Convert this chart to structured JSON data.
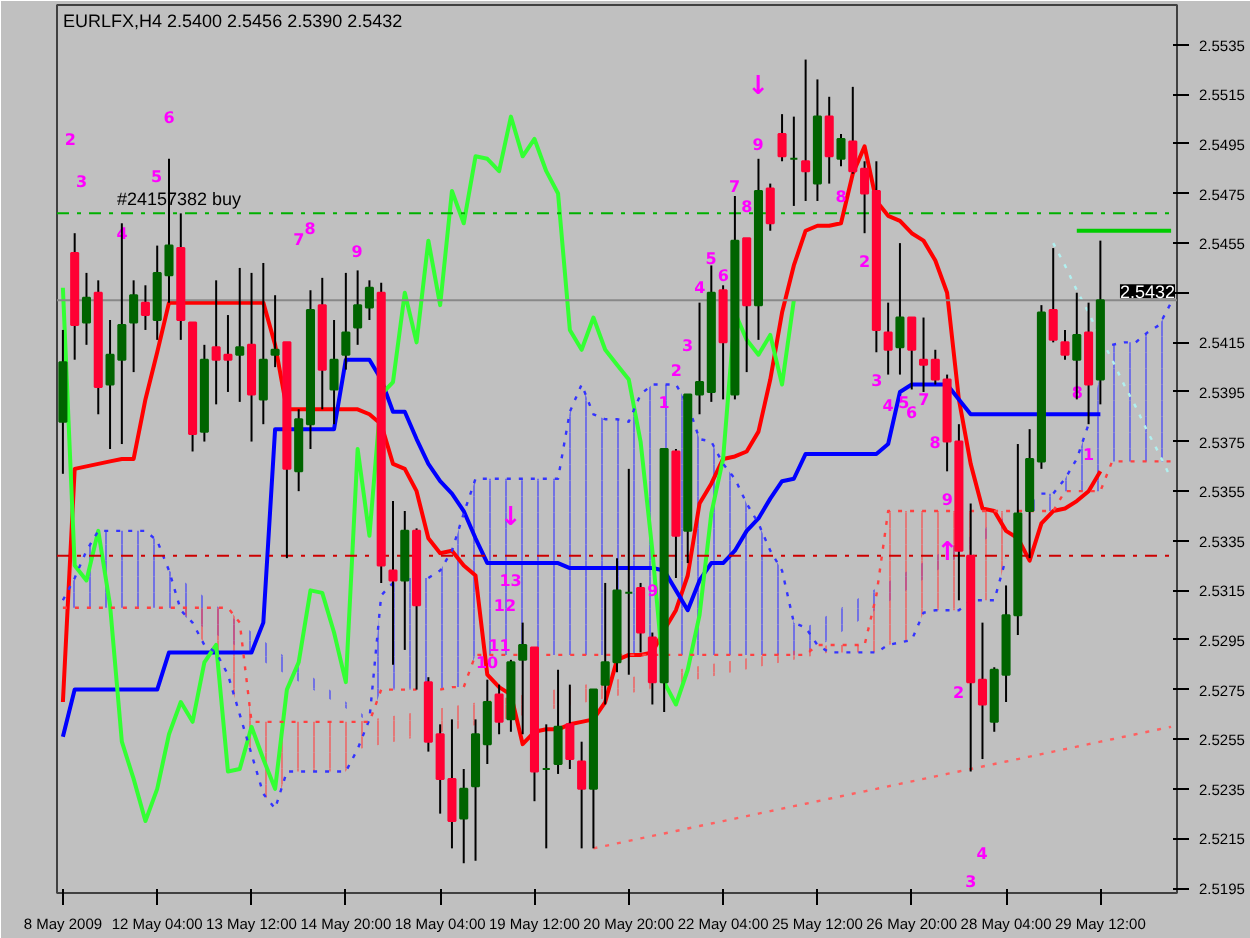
{
  "chart_data": {
    "type": "candlestick",
    "title": "EURLFX,H4  2.5400 2.5456 2.5390 2.5432",
    "categories": [
      "8 May 2009",
      null,
      null,
      null,
      null,
      null,
      null,
      null,
      "12 May 04:00",
      null,
      null,
      null,
      null,
      null,
      null,
      null,
      "13 May 12:00",
      null,
      null,
      null,
      null,
      null,
      null,
      null,
      "14 May 20:00",
      null,
      null,
      null,
      null,
      null,
      null,
      null,
      "18 May 04:00",
      null,
      null,
      null,
      null,
      null,
      null,
      null,
      "19 May 12:00",
      null,
      null,
      null,
      null,
      null,
      null,
      null,
      "20 May 20:00",
      null,
      null,
      null,
      null,
      null,
      null,
      null,
      "22 May 04:00",
      null,
      null,
      null,
      null,
      null,
      null,
      null,
      "25 May 12:00",
      null,
      null,
      null,
      null,
      null,
      null,
      null,
      "26 May 20:00",
      null,
      null,
      null,
      null,
      null,
      null,
      null,
      "28 May 04:00",
      null,
      null,
      null,
      null,
      null,
      null,
      null,
      "29 May 12:00",
      null,
      null,
      null,
      null,
      null,
      null
    ],
    "ohlc": [
      [
        2.5383,
        2.542,
        2.5362,
        2.5407
      ],
      [
        2.5451,
        2.5459,
        2.5408,
        2.5422
      ],
      [
        2.5423,
        2.5443,
        2.5414,
        2.5433
      ],
      [
        2.5435,
        2.544,
        2.5386,
        2.5397
      ],
      [
        2.5398,
        2.5424,
        2.5372,
        2.541
      ],
      [
        2.5408,
        2.5463,
        2.5374,
        2.5422
      ],
      [
        2.5423,
        2.544,
        2.5403,
        2.5434
      ],
      [
        2.5431,
        2.5438,
        2.542,
        2.5426
      ],
      [
        2.5424,
        2.5454,
        2.5416,
        2.5443
      ],
      [
        2.5442,
        2.5489,
        2.5431,
        2.5454
      ],
      [
        2.5453,
        2.5467,
        2.5416,
        2.5424
      ],
      [
        2.5423,
        2.5423,
        2.5371,
        2.5378
      ],
      [
        2.5379,
        2.5414,
        2.5375,
        2.5408
      ],
      [
        2.5413,
        2.544,
        2.539,
        2.5408
      ],
      [
        2.541,
        2.5426,
        2.5395,
        2.5408
      ],
      [
        2.541,
        2.5445,
        2.5391,
        2.5413
      ],
      [
        2.5414,
        2.5443,
        2.5375,
        2.5394
      ],
      [
        2.5392,
        2.5447,
        2.5382,
        2.5408
      ],
      [
        2.541,
        2.5434,
        2.5405,
        2.5412
      ],
      [
        2.5415,
        2.5415,
        2.5328,
        2.5364
      ],
      [
        2.5363,
        2.5388,
        2.5355,
        2.5384
      ],
      [
        2.5382,
        2.5436,
        2.5372,
        2.5428
      ],
      [
        2.543,
        2.5441,
        2.5388,
        2.5404
      ],
      [
        2.5396,
        2.5424,
        2.5382,
        2.5408
      ],
      [
        2.541,
        2.5443,
        2.5404,
        2.5419
      ],
      [
        2.5421,
        2.5444,
        2.5414,
        2.543
      ],
      [
        2.5429,
        2.544,
        2.5424,
        2.5437
      ],
      [
        2.5435,
        2.5439,
        2.5318,
        2.5325
      ],
      [
        2.5323,
        2.5351,
        2.5285,
        2.5319
      ],
      [
        2.5319,
        2.5347,
        2.5291,
        2.5339
      ],
      [
        2.5339,
        2.534,
        2.5275,
        2.5309
      ],
      [
        2.5278,
        2.528,
        2.525,
        2.5254
      ],
      [
        2.5257,
        2.5261,
        2.5225,
        2.5239
      ],
      [
        2.5239,
        2.5263,
        2.5211,
        2.5222
      ],
      [
        2.5223,
        2.5243,
        2.5205,
        2.5235
      ],
      [
        2.5236,
        2.5263,
        2.5206,
        2.5257
      ],
      [
        2.5253,
        2.5279,
        2.5245,
        2.527
      ],
      [
        2.5273,
        2.5277,
        2.5257,
        2.5262
      ],
      [
        2.5263,
        2.5287,
        2.5258,
        2.5286
      ],
      [
        2.5287,
        2.5302,
        2.5257,
        2.5293
      ],
      [
        2.5292,
        2.5292,
        2.523,
        2.5242
      ],
      [
        2.5243,
        2.5261,
        2.5211,
        2.5243
      ],
      [
        2.5245,
        2.5283,
        2.5241,
        2.526
      ],
      [
        2.5261,
        2.5277,
        2.5243,
        2.5247
      ],
      [
        2.5246,
        2.5254,
        2.5211,
        2.5235
      ],
      [
        2.5235,
        2.5275,
        2.5211,
        2.5275
      ],
      [
        2.5277,
        2.5318,
        2.5269,
        2.5286
      ],
      [
        2.5286,
        2.5328,
        2.5282,
        2.5315
      ],
      [
        2.5314,
        2.5364,
        2.5281,
        2.5314
      ],
      [
        2.5316,
        2.5318,
        2.529,
        2.5298
      ],
      [
        2.5296,
        2.5298,
        2.5269,
        2.5278
      ],
      [
        2.5278,
        2.5372,
        2.5266,
        2.5372
      ],
      [
        2.5371,
        2.5372,
        2.532,
        2.5337
      ],
      [
        2.5339,
        2.5394,
        2.5326,
        2.5394
      ],
      [
        2.5394,
        2.5431,
        2.5386,
        2.5399
      ],
      [
        2.5395,
        2.5446,
        2.5391,
        2.5435
      ],
      [
        2.5436,
        2.5438,
        2.5392,
        2.5415
      ],
      [
        2.5394,
        2.5474,
        2.5392,
        2.5456
      ],
      [
        2.5457,
        2.5457,
        2.5403,
        2.543
      ],
      [
        2.543,
        2.5489,
        2.5416,
        2.5476
      ],
      [
        2.5477,
        2.5479,
        2.546,
        2.5463
      ],
      [
        2.5499,
        2.5507,
        2.5488,
        2.549
      ],
      [
        2.5489,
        2.5506,
        2.547,
        2.5489
      ],
      [
        2.5488,
        2.5529,
        2.5472,
        2.5484
      ],
      [
        2.5479,
        2.5521,
        2.5472,
        2.5506
      ],
      [
        2.5506,
        2.5514,
        2.5479,
        2.549
      ],
      [
        2.5489,
        2.5499,
        2.5486,
        2.5497
      ],
      [
        2.5496,
        2.5518,
        2.5483,
        2.5484
      ],
      [
        2.5485,
        2.5488,
        2.5459,
        2.5475
      ],
      [
        2.5476,
        2.5488,
        2.5411,
        2.542
      ],
      [
        2.5419,
        2.5431,
        2.5402,
        2.5412
      ],
      [
        2.5413,
        2.5455,
        2.5402,
        2.5425
      ],
      [
        2.5425,
        2.5425,
        2.5396,
        2.5412
      ],
      [
        2.5408,
        2.5425,
        2.5395,
        2.5406
      ],
      [
        2.5408,
        2.5412,
        2.5398,
        2.54
      ],
      [
        2.54,
        2.5402,
        2.5363,
        2.5375
      ],
      [
        2.5375,
        2.5382,
        2.5311,
        2.5331
      ],
      [
        2.5329,
        2.535,
        2.5242,
        2.5278
      ],
      [
        2.5279,
        2.5302,
        2.5247,
        2.5269
      ],
      [
        2.5262,
        2.5284,
        2.5258,
        2.5283
      ],
      [
        2.5281,
        2.5317,
        2.527,
        2.5305
      ],
      [
        2.5305,
        2.5374,
        2.5297,
        2.5346
      ],
      [
        2.5347,
        2.538,
        2.5328,
        2.5368
      ],
      [
        2.5367,
        2.543,
        2.5364,
        2.5427
      ],
      [
        2.5428,
        2.5453,
        2.5415,
        2.5416
      ],
      [
        2.5415,
        2.542,
        2.5408,
        2.541
      ],
      [
        2.5408,
        2.5435,
        2.5392,
        2.5418
      ],
      [
        2.5419,
        2.5431,
        2.5382,
        2.5398
      ],
      [
        2.54,
        2.5456,
        2.539,
        2.5432
      ],
      null,
      null,
      null,
      null,
      null,
      null
    ],
    "colors": [
      "#006400",
      "#ff0033",
      "#006400",
      "#ff0033",
      "#006400",
      "#006400",
      "#006400",
      "#ff0033",
      "#006400",
      "#006400",
      "#ff0033",
      "#ff0033",
      "#006400",
      "#ff0033",
      "#ff0033",
      "#006400",
      "#ff0033",
      "#006400",
      "#006400",
      "#ff0033",
      "#006400",
      "#006400",
      "#ff0033",
      "#006400",
      "#006400",
      "#006400",
      "#006400",
      "#ff0033",
      "#ff0033",
      "#006400",
      "#ff0033",
      "#ff0033",
      "#ff0033",
      "#ff0033",
      "#006400",
      "#006400",
      "#006400",
      "#ff0033",
      "#006400",
      "#006400",
      "#ff0033",
      "#006400",
      "#006400",
      "#ff0033",
      "#ff0033",
      "#006400",
      "#006400",
      "#006400",
      "#006400",
      "#ff0033",
      "#ff0033",
      "#006400",
      "#ff0033",
      "#006400",
      "#006400",
      "#006400",
      "#ff0033",
      "#006400",
      "#ff0033",
      "#006400",
      "#ff0033",
      "#ff0033",
      "#006400",
      "#ff0033",
      "#006400",
      "#ff0033",
      "#006400",
      "#ff0033",
      "#ff0033",
      "#ff0033",
      "#ff0033",
      "#006400",
      "#ff0033",
      "#ff0033",
      "#ff0033",
      "#ff0033",
      "#ff0033",
      "#ff0033",
      "#ff0033",
      "#006400",
      "#006400",
      "#006400",
      "#006400",
      "#006400",
      "#ff0033",
      "#ff0033",
      "#006400",
      "#ff0033",
      "#006400",
      null,
      null,
      null,
      null,
      null,
      null
    ],
    "series": [
      {
        "type": "line",
        "color": "#ff0000",
        "line_style": "solid",
        "values": [
          2.527,
          2.5364,
          2.5365,
          2.5366,
          2.5367,
          2.5368,
          2.5368,
          2.5392,
          2.5411,
          2.5431,
          2.5431,
          2.5431,
          2.5431,
          2.5431,
          2.5431,
          2.5431,
          2.5431,
          2.5431,
          2.5414,
          2.5388,
          2.5388,
          2.5388,
          2.5388,
          2.5388,
          2.5388,
          2.5388,
          2.5386,
          2.5382,
          2.5366,
          2.5364,
          2.5355,
          2.5336,
          2.533,
          2.5331,
          2.5325,
          2.5321,
          2.5281,
          2.5276,
          2.5273,
          2.5253,
          2.5258,
          2.5259,
          2.5259,
          2.5261,
          2.5262,
          2.5263,
          2.527,
          2.5287,
          2.5289,
          2.5289,
          2.529,
          2.5299,
          2.5307,
          2.5321,
          2.535,
          2.5358,
          2.5368,
          2.5369,
          2.5371,
          2.5379,
          2.54,
          2.5427,
          2.5446,
          2.546,
          2.5462,
          2.5462,
          2.5463,
          2.5483,
          2.5494,
          2.5472,
          2.5466,
          2.5464,
          2.5459,
          2.5456,
          2.5448,
          2.5435,
          2.5392,
          2.5366,
          2.5348,
          2.5347,
          2.5339,
          2.5336,
          2.5327,
          2.5342,
          2.5347,
          2.5348,
          2.5351,
          2.5355,
          2.5363,
          null,
          null,
          null,
          null,
          null,
          null
        ]
      },
      {
        "type": "line",
        "color": "#0000ff",
        "line_style": "solid",
        "values": [
          2.5256,
          2.5275,
          2.5275,
          2.5275,
          2.5275,
          2.5275,
          2.5275,
          2.5275,
          2.5275,
          2.529,
          2.529,
          2.529,
          2.529,
          2.529,
          2.529,
          2.529,
          2.529,
          2.5302,
          2.538,
          2.538,
          2.538,
          2.538,
          2.538,
          2.538,
          2.5408,
          2.5408,
          2.5408,
          2.54,
          2.5387,
          2.5387,
          2.5376,
          2.5366,
          2.5359,
          2.5354,
          2.5347,
          2.5336,
          2.5326,
          2.5326,
          2.5326,
          2.5326,
          2.5326,
          2.5326,
          2.5326,
          2.5324,
          2.5324,
          2.5324,
          2.5324,
          2.5324,
          2.5324,
          2.5324,
          2.5324,
          2.5323,
          2.5315,
          2.5307,
          2.5319,
          2.5326,
          2.5326,
          2.5331,
          2.5339,
          2.5344,
          2.5352,
          2.5359,
          2.536,
          2.537,
          2.537,
          2.537,
          2.537,
          2.537,
          2.537,
          2.537,
          2.5374,
          2.5395,
          2.5398,
          2.5398,
          2.5398,
          2.5398,
          2.5392,
          2.5386,
          2.5386,
          2.5386,
          2.5386,
          2.5386,
          2.5386,
          2.5386,
          2.5386,
          2.5386,
          2.5386,
          2.5386,
          2.5386,
          null,
          null,
          null,
          null,
          null,
          null
        ]
      },
      {
        "type": "line",
        "color": "#33ff33",
        "line_style": "solid",
        "values": [
          2.5437,
          2.5325,
          2.5319,
          2.5339,
          2.5309,
          2.5254,
          2.5239,
          2.5222,
          2.5235,
          2.5257,
          2.527,
          2.5262,
          2.5286,
          2.5293,
          2.5242,
          2.5243,
          2.526,
          2.5247,
          2.5235,
          2.5275,
          2.5286,
          2.5315,
          2.5314,
          2.5298,
          2.5278,
          2.5372,
          2.5337,
          2.5394,
          2.5399,
          2.5435,
          2.5415,
          2.5456,
          2.543,
          2.5476,
          2.5463,
          2.549,
          2.5489,
          2.5484,
          2.5506,
          2.549,
          2.5497,
          2.5484,
          2.5475,
          2.542,
          2.5412,
          2.5425,
          2.5412,
          2.5406,
          2.54,
          2.5375,
          2.5331,
          2.5278,
          2.5269,
          2.5283,
          2.5305,
          2.5346,
          2.5368,
          2.5427,
          2.5416,
          2.541,
          2.5418,
          2.5398,
          2.5432,
          null,
          null,
          null,
          null,
          null,
          null,
          null,
          null,
          null,
          null,
          null,
          null,
          null,
          null,
          null,
          null,
          null,
          null,
          null,
          null,
          null,
          null,
          null,
          null,
          null,
          null,
          null,
          null,
          null,
          null,
          null,
          null
        ]
      },
      {
        "type": "line",
        "color": "#3333ff",
        "line_style": "dotted",
        "values": [
          2.5311,
          2.532,
          2.5331,
          2.5339,
          2.5339,
          2.5339,
          2.5339,
          2.5339,
          2.5335,
          2.5323,
          2.5307,
          2.5302,
          2.5293,
          2.529,
          2.5281,
          2.5265,
          2.5249,
          2.5233,
          2.5227,
          2.5242,
          2.5242,
          2.5242,
          2.5242,
          2.5242,
          2.5242,
          2.5251,
          2.5263,
          2.5313,
          2.5318,
          null,
          null,
          2.532,
          2.5323,
          2.5331,
          2.5346,
          2.536,
          2.536,
          2.536,
          2.536,
          2.536,
          2.536,
          2.536,
          2.536,
          2.5387,
          2.5398,
          2.5386,
          2.5384,
          2.5384,
          2.5383,
          2.5394,
          2.5398,
          2.5398,
          2.5398,
          2.539,
          2.5376,
          2.5375,
          2.5366,
          2.536,
          2.535,
          2.5342,
          2.5331,
          2.5323,
          2.5302,
          2.53,
          2.5293,
          2.529,
          2.529,
          2.529,
          2.529,
          2.529,
          2.5293,
          2.5294,
          2.5295,
          2.5306,
          2.5307,
          2.5307,
          2.5307,
          2.5311,
          2.5311,
          2.5311,
          2.5328,
          null,
          null,
          2.5354,
          2.5354,
          2.536,
          2.5368,
          2.5382,
          null,
          2.5414,
          2.5415,
          2.5415,
          2.5419,
          2.5422,
          2.5431
        ],
        "upper": [
          2.5311,
          2.532,
          2.5331,
          2.5339,
          2.5339,
          2.5339,
          2.5339,
          2.5339,
          2.5335,
          2.5323,
          null,
          null,
          null,
          null,
          null,
          null,
          null,
          null,
          null,
          null,
          null,
          null,
          null,
          null,
          null,
          null,
          2.5263,
          2.5313,
          2.5318,
          2.532,
          2.532,
          2.532,
          2.5323,
          2.5331,
          2.5346,
          2.536,
          2.536,
          2.536,
          2.536,
          2.536,
          2.536,
          2.536,
          2.536,
          2.5387,
          2.5398,
          2.5386,
          2.5384,
          2.5384,
          2.5383,
          2.5394,
          2.5398,
          2.5398,
          2.5398,
          2.539,
          2.5376,
          2.5375,
          2.5366,
          2.536,
          2.535,
          2.5342,
          2.5331,
          2.5323,
          2.5302,
          2.53,
          null,
          null,
          null,
          null,
          null,
          null,
          null,
          null,
          null,
          null,
          null,
          null,
          null,
          null,
          null,
          null,
          null,
          null,
          2.535,
          2.5354,
          2.5354,
          2.536,
          2.5368,
          2.5382,
          2.5402,
          2.5414,
          2.5415,
          2.5415,
          2.5419,
          2.5422,
          2.5431
        ],
        "lower": [
          2.5308,
          2.5308,
          2.5308,
          2.5308,
          2.5308,
          2.5308,
          2.5308,
          2.5308,
          2.5308,
          2.5308,
          null,
          null,
          null,
          null,
          null,
          null,
          null,
          null,
          null,
          null,
          null,
          null,
          null,
          null,
          null,
          null,
          2.5262,
          2.5275,
          2.5275,
          2.5275,
          2.5275,
          2.5275,
          2.5275,
          2.5276,
          2.5276,
          2.5289,
          2.5289,
          2.5289,
          2.5289,
          2.5289,
          2.5289,
          2.5289,
          2.5289,
          2.5289,
          2.5289,
          2.5289,
          2.5289,
          2.5289,
          2.5289,
          2.5289,
          2.5289,
          2.5289,
          2.5289,
          2.5289,
          2.5289,
          2.5289,
          2.5289,
          2.5289,
          2.5289,
          2.5289,
          2.5289,
          2.5289,
          2.5289,
          2.5289,
          null,
          null,
          null,
          null,
          null,
          null,
          null,
          null,
          null,
          null,
          null,
          null,
          null,
          null,
          null,
          null,
          null,
          null,
          2.5347,
          2.5347,
          2.5347,
          2.5355,
          2.5355,
          2.5355,
          2.5355,
          2.5367,
          2.5367,
          2.5367,
          2.5367,
          2.5367,
          2.5367
        ]
      },
      {
        "type": "line",
        "color": "#ff4040",
        "line_style": "dotted",
        "upper": [
          null,
          null,
          null,
          null,
          null,
          null,
          null,
          null,
          null,
          null,
          2.5308,
          2.5308,
          2.5308,
          2.5308,
          2.5308,
          2.5302,
          2.5262,
          2.5262,
          2.5262,
          2.5262,
          2.5262,
          2.5262,
          2.5262,
          2.5262,
          2.5262,
          2.5262,
          null,
          null,
          null,
          null,
          null,
          null,
          null,
          null,
          null,
          null,
          null,
          null,
          null,
          null,
          null,
          null,
          null,
          null,
          null,
          null,
          null,
          null,
          null,
          null,
          null,
          null,
          null,
          null,
          null,
          null,
          null,
          null,
          null,
          null,
          null,
          null,
          null,
          null,
          null,
          2.5293,
          2.5293,
          2.5293,
          2.5293,
          2.5313,
          2.5347,
          2.5347,
          2.5347,
          2.5347,
          2.5347,
          2.5347,
          2.5347,
          2.5347,
          2.5347,
          2.5347,
          2.5347,
          2.5347,
          null,
          null,
          null,
          null,
          null,
          null,
          null,
          null,
          null,
          null,
          null,
          null,
          null
        ],
        "lower": [
          null,
          null,
          null,
          null,
          null,
          null,
          null,
          null,
          null,
          null,
          2.5307,
          2.5302,
          2.5293,
          2.529,
          2.5281,
          2.5265,
          2.5249,
          2.5233,
          2.5227,
          2.5242,
          2.5242,
          2.5242,
          2.5242,
          2.5242,
          2.5242,
          2.5251,
          null,
          null,
          null,
          null,
          null,
          null,
          null,
          null,
          null,
          null,
          null,
          null,
          null,
          null,
          null,
          null,
          null,
          null,
          null,
          null,
          null,
          null,
          null,
          null,
          null,
          null,
          null,
          null,
          null,
          null,
          null,
          null,
          null,
          null,
          null,
          null,
          null,
          null,
          null,
          2.529,
          2.529,
          2.529,
          2.529,
          2.529,
          2.5293,
          2.5294,
          2.5295,
          2.5306,
          2.5307,
          2.5307,
          2.5307,
          2.5311,
          2.5311,
          2.5311,
          2.5328,
          2.534,
          null,
          null,
          null,
          null,
          null,
          null,
          null,
          null,
          null,
          null,
          null,
          null,
          null
        ],
        "values": [
          2.5308,
          2.5308,
          2.5308,
          2.5308,
          2.5308,
          2.5308,
          2.5308,
          2.5308,
          2.5308,
          2.5308,
          2.5308,
          2.5308,
          2.5308,
          2.5308,
          2.5308,
          2.5302,
          2.5262,
          2.5262,
          2.5262,
          2.5262,
          2.5262,
          2.5262,
          2.5262,
          2.5262,
          2.5262,
          2.5262,
          2.5262,
          2.5275,
          2.5275,
          2.5275,
          2.5275,
          null,
          2.5275,
          2.5276,
          2.5276,
          2.5289,
          2.5289,
          2.5289,
          2.5289,
          2.5289,
          null,
          2.5289,
          2.5289,
          2.5289,
          2.5289,
          2.5289,
          2.5289,
          2.5289,
          2.5289,
          2.5289,
          2.5289,
          2.5289,
          2.5289,
          2.5289,
          2.5289,
          2.5289,
          2.5289,
          2.5289,
          2.5289,
          2.5289,
          2.5289,
          2.5289,
          2.5289,
          2.5289,
          2.5293,
          2.5293,
          2.5293,
          2.5293,
          2.5293,
          2.5313,
          2.5347,
          2.5347,
          2.5347,
          2.5347,
          2.5347,
          2.5347,
          2.5347,
          2.5347,
          2.5347,
          2.5347,
          2.5347,
          2.5347,
          2.5347,
          2.5347,
          2.5347,
          2.5355,
          2.5355,
          2.5355,
          2.5355,
          2.5367,
          2.5367,
          2.5367,
          2.5367,
          2.5367,
          2.5367
        ]
      },
      {
        "type": "line",
        "color": "#00cc00",
        "line_style": "solid",
        "values": [
          null,
          null,
          null,
          null,
          null,
          null,
          null,
          null,
          null,
          null,
          null,
          null,
          null,
          null,
          null,
          null,
          null,
          null,
          null,
          null,
          null,
          null,
          null,
          null,
          null,
          null,
          null,
          null,
          null,
          null,
          null,
          null,
          null,
          null,
          null,
          null,
          null,
          null,
          null,
          null,
          null,
          null,
          null,
          null,
          null,
          null,
          null,
          null,
          null,
          null,
          null,
          null,
          null,
          null,
          null,
          null,
          null,
          null,
          null,
          null,
          null,
          null,
          null,
          null,
          null,
          null,
          null,
          null,
          null,
          null,
          null,
          null,
          null,
          null,
          null,
          null,
          null,
          null,
          null,
          null,
          null,
          null,
          null,
          null,
          null,
          null,
          2.546,
          2.546,
          2.546,
          2.546,
          2.546,
          2.546,
          2.546,
          2.546,
          2.546
        ]
      },
      {
        "type": "line",
        "color": "#ff6060",
        "line_style": "dotted",
        "values": [
          null,
          null,
          null,
          null,
          null,
          null,
          null,
          null,
          null,
          null,
          null,
          null,
          null,
          null,
          null,
          null,
          null,
          null,
          null,
          null,
          null,
          null,
          null,
          null,
          null,
          null,
          null,
          null,
          null,
          null,
          null,
          null,
          null,
          null,
          null,
          null,
          null,
          null,
          null,
          null,
          null,
          null,
          null,
          null,
          null,
          2.5211,
          2.5212,
          2.5213,
          2.5214,
          2.5215,
          2.5216,
          2.5217,
          2.5218,
          2.5219,
          2.522,
          2.5221,
          2.5222,
          2.5223,
          2.5224,
          2.5225,
          2.5226,
          2.5227,
          2.5228,
          2.5229,
          2.523,
          2.5231,
          2.5232,
          2.5233,
          2.5234,
          2.5235,
          2.5236,
          2.5237,
          2.5238,
          2.5239,
          2.524,
          2.5241,
          2.5242,
          2.5243,
          2.5244,
          2.5245,
          2.5246,
          2.5247,
          2.5248,
          2.5249,
          2.525,
          2.5251,
          2.5252,
          2.5253,
          2.5254,
          2.5255,
          2.5256,
          2.5257,
          2.5258,
          2.5259,
          2.526
        ]
      },
      {
        "type": "line",
        "color": "#b0f0f0",
        "line_style": "dotted",
        "values": [
          null,
          null,
          null,
          null,
          null,
          null,
          null,
          null,
          null,
          null,
          null,
          null,
          null,
          null,
          null,
          null,
          null,
          null,
          null,
          null,
          null,
          null,
          null,
          null,
          null,
          null,
          null,
          null,
          null,
          null,
          null,
          null,
          null,
          null,
          null,
          null,
          null,
          null,
          null,
          null,
          null,
          null,
          null,
          null,
          null,
          null,
          null,
          null,
          null,
          null,
          null,
          null,
          null,
          null,
          null,
          null,
          null,
          null,
          null,
          null,
          null,
          null,
          null,
          null,
          null,
          null,
          null,
          null,
          null,
          null,
          null,
          null,
          null,
          null,
          null,
          null,
          null,
          null,
          null,
          null,
          null,
          null,
          null,
          null,
          2.5455,
          2.5446,
          2.5436,
          2.5427,
          2.5417,
          2.5408,
          2.5398,
          2.5389,
          2.5379,
          2.537,
          2.536
        ]
      }
    ],
    "ylim": [
      2.5193,
      2.5551
    ],
    "yticks": [
      2.5195,
      2.5215,
      2.5235,
      2.5255,
      2.5275,
      2.5295,
      2.5315,
      2.5335,
      2.5355,
      2.5375,
      2.5395,
      2.5415,
      {
        "value": 2.5435,
        "label": null
      },
      2.5455,
      2.5475,
      2.5495,
      2.5515,
      2.5535
    ],
    "ref_lines": [
      {
        "axis": "y",
        "value": 2.5467,
        "label": "#24157382 buy",
        "color": "#00b000",
        "line_style": "dashed"
      },
      {
        "axis": "y",
        "value": 2.5432,
        "label": "2.5432",
        "color": "#888888",
        "line_style": "solid"
      },
      {
        "axis": "y",
        "value": 2.5329,
        "color": "#cc0000",
        "line_style": "dashed"
      }
    ],
    "annotations": [
      "2",
      "3",
      "4",
      "5",
      "6",
      "7",
      "8",
      "9",
      {
        "text": "10",
        "y": 2.5286
      },
      "11",
      "12",
      "13",
      "↓",
      "9",
      "1",
      "2",
      "3",
      "4",
      "5",
      "6",
      "7",
      "8",
      "9",
      "↓",
      "8",
      "2",
      "3",
      "4",
      "5",
      "6",
      "7",
      "8",
      {
        "text": "9",
        "y": 2.5352
      },
      "↑",
      "2",
      "3",
      "4",
      {
        "text": "8",
        "y": 2.5395
      },
      {
        "text": "1",
        "y": 2.537
      }
    ]
  }
}
